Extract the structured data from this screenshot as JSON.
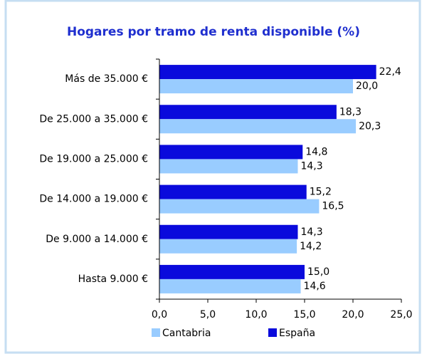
{
  "chart_data": {
    "type": "hbar",
    "title": "Hogares por tramo de renta disponible (%)",
    "categories": [
      "Más de 35.000 €",
      "De 25.000 a 35.000 €",
      "De 19.000 a 25.000 €",
      "De 14.000 a 19.000 €",
      "De 9.000 a 14.000 €",
      "Hasta 9.000 €"
    ],
    "series": [
      {
        "name": "España",
        "color": "#0a0adc",
        "values": [
          22.4,
          18.3,
          14.8,
          15.2,
          14.3,
          15.0
        ],
        "value_labels": [
          "22,4",
          "18,3",
          "14,8",
          "15,2",
          "14,3",
          "15,0"
        ]
      },
      {
        "name": "Cantabria",
        "color": "#99ccff",
        "values": [
          20.0,
          20.3,
          14.3,
          16.5,
          14.2,
          14.6
        ],
        "value_labels": [
          "20,0",
          "20,3",
          "14,3",
          "16,5",
          "14,2",
          "14,6"
        ]
      }
    ],
    "xlim": [
      0,
      25
    ],
    "xticks": [
      {
        "value": 0,
        "label": "0,0"
      },
      {
        "value": 5,
        "label": "5,0"
      },
      {
        "value": 10,
        "label": "10,0"
      },
      {
        "value": 15,
        "label": "15,0"
      },
      {
        "value": 20,
        "label": "20,0"
      },
      {
        "value": 25,
        "label": "25,0"
      }
    ],
    "legend": "bottom"
  }
}
